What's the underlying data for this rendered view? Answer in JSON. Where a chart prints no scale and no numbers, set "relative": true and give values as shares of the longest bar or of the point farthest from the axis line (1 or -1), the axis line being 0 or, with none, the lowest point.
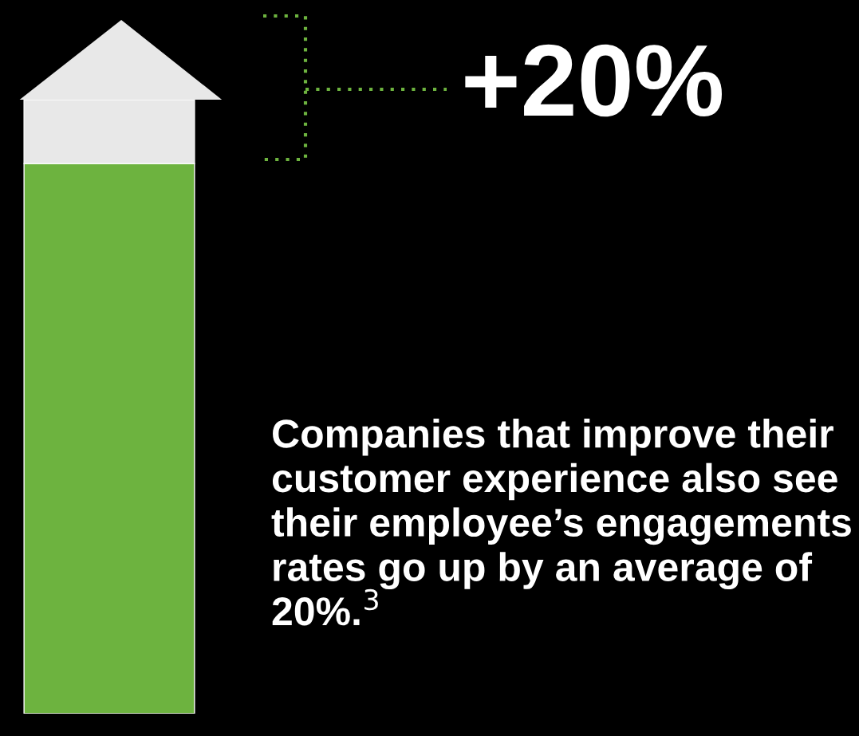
{
  "chart_data": {
    "type": "bar",
    "stacked": true,
    "relative": true,
    "categories": [
      null
    ],
    "series": [
      {
        "color": "#6db33f",
        "values": [
          0.896
        ]
      },
      {
        "color": "#e8e8e8",
        "values": [
          0.104
        ]
      }
    ],
    "grid": false,
    "legend": false,
    "annotations": [
      "+20%",
      "Companies that improve their customer experience also see their employee’s engagements rates go up by an average of 20%.$^{3}$"
    ]
  }
}
